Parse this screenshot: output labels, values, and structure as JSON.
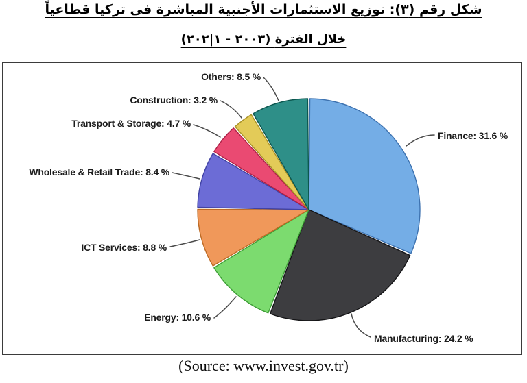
{
  "title": {
    "line1": "شكل رقم (٣): توزيع الاستثمارات الأجنبية المباشرة فى تركيا قطاعياً",
    "line2_text": "خلال الفترة",
    "line2_range": "(٢٠٢|١ - ٢٠٠٣)"
  },
  "source_caption": "(Source: www.invest.gov.tr)",
  "chart_data": {
    "type": "pie",
    "title": "شكل رقم (٣): توزيع الاستثمارات الأجنبية المباشرة فى تركيا قطاعياً",
    "subtitle": "خلال الفترة (٢٠٠٣ - ١|٢٠٢)",
    "unit": "%",
    "start_angle_deg": 0,
    "direction": "clockwise",
    "legend_position": "callout-labels",
    "slices": [
      {
        "label": "Finance",
        "value": 31.6,
        "display": "Finance: 31.6 %",
        "color": "#74ADE6",
        "edge": "#3D72B0"
      },
      {
        "label": "Manufacturing",
        "value": 24.2,
        "display": "Manufacturing: 24.2 %",
        "color": "#3D3D40",
        "edge": "#151517"
      },
      {
        "label": "Energy",
        "value": 10.6,
        "display": "Energy: 10.6 %",
        "color": "#7CDB6F",
        "edge": "#3E9E36"
      },
      {
        "label": "ICT Services",
        "value": 8.8,
        "display": "ICT Services: 8.8 %",
        "color": "#F0985A",
        "edge": "#BC6A24"
      },
      {
        "label": "Wholesale & Retail Trade",
        "value": 8.4,
        "display": "Wholesale & Retail Trade: 8.4 %",
        "color": "#6C6CD6",
        "edge": "#4143A4"
      },
      {
        "label": "Transport & Storage",
        "value": 4.7,
        "display": "Transport & Storage: 4.7 %",
        "color": "#EA4A72",
        "edge": "#AC1F45"
      },
      {
        "label": "Construction",
        "value": 3.2,
        "display": "Construction: 3.2 %",
        "color": "#E3CB58",
        "edge": "#A89127"
      },
      {
        "label": "Others",
        "value": 8.5,
        "display": "Others: 8.5 %",
        "color": "#2E8F88",
        "edge": "#0C574F"
      }
    ]
  }
}
